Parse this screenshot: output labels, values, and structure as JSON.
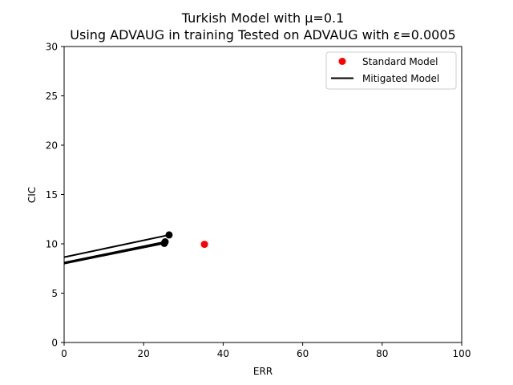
{
  "chart_data": {
    "type": "scatter",
    "title_line1": "Turkish Model with μ=0.1",
    "title_line2": "Using ADVAUG in training Tested on ADVAUG with ε=0.0005",
    "xlabel": "ERR",
    "ylabel": "CIC",
    "xlim": [
      0,
      100
    ],
    "ylim": [
      0,
      30
    ],
    "xticks": [
      0,
      20,
      40,
      60,
      80,
      100
    ],
    "yticks": [
      0,
      5,
      10,
      15,
      20,
      25,
      30
    ],
    "grid": false,
    "legend_position": "top-right",
    "colors": {
      "standard": "#ff0000",
      "mitigated": "#000000"
    },
    "series": [
      {
        "name": "Standard Model",
        "kind": "point",
        "points": [
          {
            "x": 35.3,
            "y": 9.95
          }
        ]
      },
      {
        "name": "Mitigated Model",
        "kind": "line-with-endpoint",
        "lines": [
          {
            "x": [
              0,
              26.4
            ],
            "y": [
              8.65,
              10.9
            ]
          },
          {
            "x": [
              0,
              25.4
            ],
            "y": [
              8.1,
              10.2
            ]
          },
          {
            "x": [
              0,
              25.2
            ],
            "y": [
              8.0,
              10.05
            ]
          }
        ]
      }
    ]
  }
}
